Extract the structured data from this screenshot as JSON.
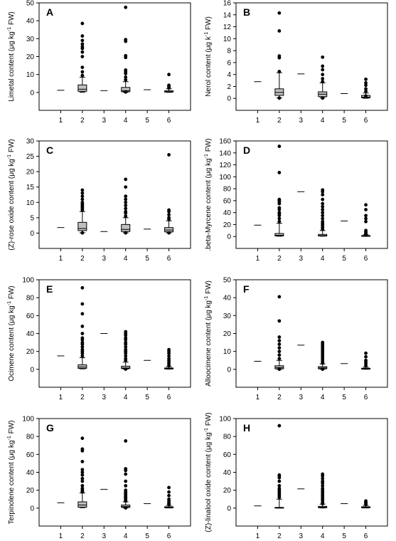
{
  "chart_data": [
    {
      "type": "box",
      "panel_label": "A",
      "ylabel": "Limetal content (μg kg-1 FW)",
      "ylabel_parts": [
        "Limetal content (μg kg",
        "-1",
        " FW)"
      ],
      "ylim": [
        -10,
        50
      ],
      "yticks": [
        0,
        10,
        20,
        30,
        40,
        50
      ],
      "categories": [
        "1",
        "2",
        "3",
        "4",
        "5",
        "6"
      ],
      "boxes": [
        {
          "x": "1",
          "single": 1.2
        },
        {
          "x": "2",
          "whisker_low": 0.1,
          "q1": 0.6,
          "median": 1.8,
          "q3": 4.2,
          "whisker_high": 8.5,
          "outliers": [
            9.5,
            11.5,
            14.0,
            20.0,
            22.5,
            24.5,
            25.5,
            27.0,
            29.0,
            31.5,
            38.5
          ]
        },
        {
          "x": "3",
          "single": 1.0
        },
        {
          "x": "4",
          "whisker_low": 0.1,
          "q1": 0.4,
          "median": 1.0,
          "q3": 2.8,
          "whisker_high": 6.0,
          "outliers": [
            0.2,
            7.0,
            8.5,
            10.5,
            11.5,
            12.5,
            19.5,
            20.5,
            28.5,
            29.5,
            47.5
          ]
        },
        {
          "x": "5",
          "single": 1.5
        },
        {
          "x": "6",
          "whisker_low": 0.05,
          "q1": 0.2,
          "median": 0.4,
          "q3": 0.9,
          "whisker_high": 2.0,
          "outliers": [
            2.5,
            3.0,
            3.5,
            4.0,
            10.0
          ]
        }
      ]
    },
    {
      "type": "box",
      "panel_label": "B",
      "ylabel": "Nerol content (μg k-1 FW)",
      "ylabel_parts": [
        "Nerol content (μg k",
        "-1",
        " FW)"
      ],
      "ylim": [
        -2,
        16
      ],
      "yticks": [
        0,
        2,
        4,
        6,
        8,
        10,
        12,
        14,
        16
      ],
      "categories": [
        "1",
        "2",
        "3",
        "4",
        "5",
        "6"
      ],
      "boxes": [
        {
          "x": "1",
          "single": 2.8
        },
        {
          "x": "2",
          "whisker_low": 0.1,
          "q1": 0.5,
          "median": 1.0,
          "q3": 1.6,
          "whisker_high": 4.3,
          "outliers": [
            0.05,
            4.5,
            6.8,
            7.1,
            11.3,
            14.3
          ]
        },
        {
          "x": "3",
          "single": 4.1
        },
        {
          "x": "4",
          "whisker_low": 0.1,
          "q1": 0.3,
          "median": 0.7,
          "q3": 1.1,
          "whisker_high": 2.6,
          "outliers": [
            0.05,
            2.8,
            3.3,
            4.0,
            4.8,
            5.4,
            6.9
          ]
        },
        {
          "x": "5",
          "single": 0.8
        },
        {
          "x": "6",
          "whisker_low": 0.02,
          "q1": 0.1,
          "median": 0.2,
          "q3": 0.5,
          "whisker_high": 0.9,
          "outliers": [
            0.4,
            1.2,
            1.6,
            2.2,
            2.6,
            3.2
          ]
        }
      ]
    },
    {
      "type": "box",
      "panel_label": "C",
      "ylabel": "(Z)-rose oxide content (μg kg-1 FW)",
      "ylabel_parts": [
        "(Z)-rose oxide content (μg kg",
        "-1",
        " FW)"
      ],
      "ylim": [
        -5,
        30
      ],
      "yticks": [
        0,
        5,
        10,
        15,
        20,
        25,
        30
      ],
      "categories": [
        "1",
        "2",
        "3",
        "4",
        "5",
        "6"
      ],
      "boxes": [
        {
          "x": "1",
          "single": 1.8
        },
        {
          "x": "2",
          "whisker_low": 0.1,
          "q1": 0.8,
          "median": 1.5,
          "q3": 3.5,
          "whisker_high": 7.0,
          "outliers": [
            0.05,
            7.5,
            8.0,
            8.5,
            9.0,
            9.5,
            10.0,
            11.0,
            12.0,
            13.0,
            14.0
          ]
        },
        {
          "x": "3",
          "single": 0.5
        },
        {
          "x": "4",
          "whisker_low": 0.1,
          "q1": 0.5,
          "median": 1.2,
          "q3": 2.8,
          "whisker_high": 5.0,
          "outliers": [
            0.05,
            5.5,
            6.5,
            7.0,
            8.0,
            9.0,
            10.0,
            11.0,
            12.0,
            15.0,
            17.5
          ]
        },
        {
          "x": "5",
          "single": 1.3
        },
        {
          "x": "6",
          "whisker_low": 0.1,
          "q1": 0.4,
          "median": 1.0,
          "q3": 1.8,
          "whisker_high": 4.0,
          "outliers": [
            0.05,
            4.5,
            5.0,
            6.0,
            7.0,
            7.5,
            25.5
          ]
        }
      ]
    },
    {
      "type": "box",
      "panel_label": "D",
      "ylabel": "beta-Myrcene content (μg kg-1 FW)",
      "ylabel_parts": [
        ".beta-Myrcene content (μg kg",
        "-1",
        " FW)"
      ],
      "ylim": [
        -20,
        160
      ],
      "yticks": [
        0,
        20,
        40,
        60,
        80,
        100,
        120,
        140,
        160
      ],
      "categories": [
        "1",
        "2",
        "3",
        "4",
        "5",
        "6"
      ],
      "boxes": [
        {
          "x": "1",
          "single": 19
        },
        {
          "x": "2",
          "whisker_low": 0.5,
          "q1": 1.0,
          "median": 2.0,
          "q3": 5.0,
          "whisker_high": 22,
          "outliers": [
            25,
            30,
            35,
            38,
            40,
            45,
            48,
            55,
            58,
            60,
            62,
            107,
            151
          ]
        },
        {
          "x": "3",
          "single": 75
        },
        {
          "x": "4",
          "whisker_low": 0.5,
          "q1": 0.8,
          "median": 1.5,
          "q3": 3.5,
          "whisker_high": 10,
          "outliers": [
            12,
            15,
            18,
            20,
            22,
            25,
            30,
            35,
            40,
            45,
            50,
            55,
            62,
            70,
            75,
            78
          ]
        },
        {
          "x": "5",
          "single": 26
        },
        {
          "x": "6",
          "whisker_low": 0.2,
          "q1": 0.4,
          "median": 0.8,
          "q3": 1.5,
          "whisker_high": 3,
          "outliers": [
            4,
            6,
            8,
            10,
            25,
            30,
            35,
            45,
            53
          ]
        }
      ]
    },
    {
      "type": "box",
      "panel_label": "E",
      "ylabel": "Ocimene content (μg kg-1 FW)",
      "ylabel_parts": [
        "Ocimene content (μg kg",
        "-1",
        " FW)"
      ],
      "ylim": [
        -20,
        100
      ],
      "yticks": [
        0,
        20,
        40,
        60,
        80,
        100
      ],
      "categories": [
        "1",
        "2",
        "3",
        "4",
        "5",
        "6"
      ],
      "boxes": [
        {
          "x": "1",
          "single": 15
        },
        {
          "x": "2",
          "whisker_low": 0.5,
          "q1": 1.0,
          "median": 2.5,
          "q3": 5.0,
          "whisker_high": 13,
          "outliers": [
            15,
            18,
            20,
            22,
            25,
            28,
            30,
            33,
            35,
            40,
            48,
            62,
            73,
            91
          ]
        },
        {
          "x": "3",
          "single": 40
        },
        {
          "x": "4",
          "whisker_low": 0.3,
          "q1": 0.8,
          "median": 1.5,
          "q3": 3.5,
          "whisker_high": 8,
          "outliers": [
            0.2,
            10,
            12,
            15,
            18,
            20,
            22,
            25,
            28,
            30,
            33,
            35,
            38,
            40,
            42
          ]
        },
        {
          "x": "5",
          "single": 10
        },
        {
          "x": "6",
          "whisker_low": 0.2,
          "q1": 0.4,
          "median": 0.8,
          "q3": 1.5,
          "whisker_high": 3,
          "outliers": [
            4,
            6,
            8,
            10,
            12,
            15,
            18,
            20,
            22
          ]
        }
      ]
    },
    {
      "type": "box",
      "panel_label": "F",
      "ylabel": "Alloocimene content (μg kg-1 FW)",
      "ylabel_parts": [
        "Alloocimene content (μg kg",
        "-1",
        " FW)"
      ],
      "ylim": [
        -10,
        50
      ],
      "yticks": [
        0,
        10,
        20,
        30,
        40,
        50
      ],
      "categories": [
        "1",
        "2",
        "3",
        "4",
        "5",
        "6"
      ],
      "boxes": [
        {
          "x": "1",
          "single": 4.5
        },
        {
          "x": "2",
          "whisker_low": 0.1,
          "q1": 0.3,
          "median": 1.0,
          "q3": 2.0,
          "whisker_high": 5.0,
          "outliers": [
            0.05,
            6.0,
            8.0,
            10.0,
            12.0,
            14.0,
            16.0,
            18.0,
            27.0,
            40.5
          ]
        },
        {
          "x": "3",
          "single": 13.5
        },
        {
          "x": "4",
          "whisker_low": 0.1,
          "q1": 0.3,
          "median": 0.8,
          "q3": 1.5,
          "whisker_high": 3.0,
          "outliers": [
            0.05,
            3.5,
            4.0,
            5.0,
            6.0,
            7.0,
            8.0,
            9.0,
            10.0,
            11.0,
            12.0,
            13.0,
            14.0,
            15.0
          ]
        },
        {
          "x": "5",
          "single": 3.2
        },
        {
          "x": "6",
          "whisker_low": 0.05,
          "q1": 0.1,
          "median": 0.3,
          "q3": 0.6,
          "whisker_high": 1.2,
          "outliers": [
            2.0,
            3.0,
            4.0,
            5.0,
            7.0,
            9.0
          ]
        }
      ]
    },
    {
      "type": "box",
      "panel_label": "G",
      "ylabel": "Terpinolene content (μg kg-1 FW)",
      "ylabel_parts": [
        "Terpinolene content (μg kg",
        "-1",
        " FW)"
      ],
      "ylim": [
        -20,
        100
      ],
      "yticks": [
        0,
        20,
        40,
        60,
        80,
        100
      ],
      "categories": [
        "1",
        "2",
        "3",
        "4",
        "5",
        "6"
      ],
      "boxes": [
        {
          "x": "1",
          "single": 6
        },
        {
          "x": "2",
          "whisker_low": 0.5,
          "q1": 1.0,
          "median": 3.5,
          "q3": 7.0,
          "whisker_high": 17,
          "outliers": [
            18,
            19,
            20,
            22,
            25,
            30,
            33,
            37,
            40,
            43,
            52,
            64,
            66,
            78
          ]
        },
        {
          "x": "3",
          "single": 21
        },
        {
          "x": "4",
          "whisker_low": 0.3,
          "q1": 0.8,
          "median": 1.8,
          "q3": 3.5,
          "whisker_high": 7,
          "outliers": [
            0.2,
            8,
            9,
            10,
            11,
            12,
            13,
            14,
            15,
            16,
            17,
            18,
            20,
            25,
            30,
            38,
            42,
            44,
            75
          ]
        },
        {
          "x": "5",
          "single": 5
        },
        {
          "x": "6",
          "whisker_low": 0.2,
          "q1": 0.4,
          "median": 0.8,
          "q3": 1.5,
          "whisker_high": 3,
          "outliers": [
            4,
            5,
            6,
            8,
            10,
            14,
            18,
            23
          ]
        }
      ]
    },
    {
      "type": "box",
      "panel_label": "H",
      "ylabel": "(Z)-linalool oxide content (μg kg-1 FW)",
      "ylabel_parts": [
        "(Z)-linalool oxide content (μg kg",
        "-1",
        " FW)"
      ],
      "ylim": [
        -20,
        100
      ],
      "yticks": [
        0,
        20,
        40,
        60,
        80,
        100
      ],
      "categories": [
        "1",
        "2",
        "3",
        "4",
        "5",
        "6"
      ],
      "boxes": [
        {
          "x": "1",
          "single": 2.5
        },
        {
          "x": "2",
          "whisker_low": 0.2,
          "q1": 0.3,
          "median": 0.5,
          "q3": 0.8,
          "whisker_high": 10,
          "outliers": [
            12,
            14,
            16,
            18,
            20,
            22,
            25,
            30,
            34,
            36,
            37,
            92
          ]
        },
        {
          "x": "3",
          "single": 21.5
        },
        {
          "x": "4",
          "whisker_low": 0.2,
          "q1": 0.5,
          "median": 1.0,
          "q3": 2.0,
          "whisker_high": 4.5,
          "outliers": [
            5,
            7,
            9,
            10,
            12,
            14,
            16,
            18,
            20,
            22,
            25,
            28,
            30,
            33,
            36,
            38
          ]
        },
        {
          "x": "5",
          "single": 5
        },
        {
          "x": "6",
          "whisker_low": 0.2,
          "q1": 0.4,
          "median": 0.8,
          "q3": 1.5,
          "whisker_high": 3,
          "outliers": [
            4,
            5,
            6,
            7,
            8
          ]
        }
      ]
    }
  ],
  "colors": {
    "box_fill": "#c0c0c0",
    "stroke": "#000000",
    "outlier": "#000000",
    "background": "#ffffff"
  }
}
